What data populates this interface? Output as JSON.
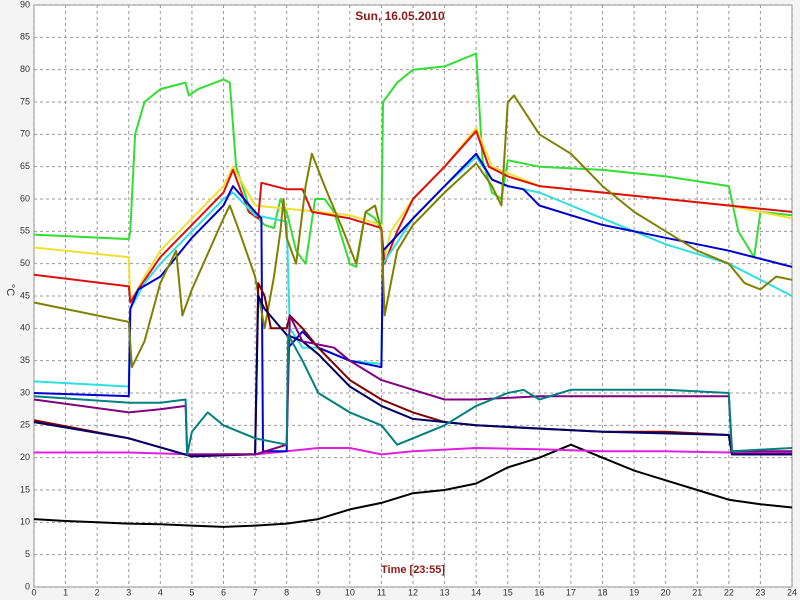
{
  "chart_data": {
    "type": "line",
    "title": "Sun, 16.05.2010",
    "x_label": "Time [23:55]",
    "y_label": "°C",
    "xlim": [
      0,
      24
    ],
    "ylim": [
      0,
      90
    ],
    "xticks": [
      0,
      1,
      2,
      3,
      4,
      5,
      6,
      7,
      8,
      9,
      10,
      11,
      12,
      13,
      14,
      15,
      16,
      17,
      18,
      19,
      20,
      21,
      22,
      23,
      24
    ],
    "yticks": [
      0,
      5,
      10,
      15,
      20,
      25,
      30,
      35,
      40,
      45,
      50,
      55,
      60,
      65,
      70,
      75,
      80,
      85,
      90
    ],
    "grid": true,
    "series": [
      {
        "color": "#000000",
        "x": [
          0,
          1,
          2,
          3,
          4,
          5,
          6,
          7,
          8,
          9,
          10,
          11,
          12,
          13,
          14,
          15,
          16,
          16.5,
          17,
          17.5,
          18,
          19,
          20,
          21,
          22,
          23,
          24
        ],
        "values": [
          10.5,
          10.2,
          10,
          9.8,
          9.7,
          9.5,
          9.3,
          9.5,
          9.8,
          10.5,
          12,
          13,
          14.5,
          15,
          16,
          18.5,
          20,
          21,
          22,
          21,
          20,
          18,
          16.5,
          15,
          13.5,
          12.8,
          12.3
        ]
      },
      {
        "color": "#e020e0",
        "x": [
          0,
          3,
          5,
          7,
          8,
          9,
          10,
          11,
          12,
          14,
          16,
          18,
          20,
          22,
          24
        ],
        "values": [
          20.8,
          20.8,
          20.5,
          20.5,
          21,
          21.5,
          21.5,
          20.5,
          21,
          21.5,
          21.3,
          21,
          21,
          20.8,
          20.8
        ]
      },
      {
        "color": "#33dd33",
        "x": [
          0,
          3,
          3.05,
          3.2,
          3.5,
          4,
          4.8,
          4.9,
          5.2,
          6,
          6.2,
          6.4,
          6.8,
          7,
          7.3,
          7.6,
          7.8,
          8,
          8.3,
          8.6,
          8.9,
          9.2,
          9.5,
          10,
          10.2,
          10.5,
          10.8,
          11,
          11.05,
          11.5,
          12,
          13,
          14,
          14.2,
          14.5,
          14.8,
          15,
          16,
          18,
          20,
          22,
          22.3,
          22.8,
          23,
          24
        ],
        "values": [
          54.5,
          53.8,
          55,
          70,
          75,
          77,
          78,
          76,
          77,
          78.5,
          78,
          65,
          59,
          57.5,
          56,
          55.5,
          60,
          58,
          52,
          50,
          60,
          60,
          58,
          50,
          49.5,
          58,
          57,
          55,
          75,
          78,
          80,
          80.5,
          82.5,
          66,
          61,
          60,
          66,
          65,
          64.5,
          63.5,
          62,
          55,
          51,
          58,
          57.5
        ]
      },
      {
        "color": "#f0e030",
        "x": [
          0,
          3,
          3.05,
          3.5,
          4,
          5,
          6,
          6.3,
          7,
          8,
          9,
          10,
          11,
          11.05,
          11.3,
          12,
          13,
          14,
          14.5,
          16,
          18,
          20,
          22,
          24
        ],
        "values": [
          52.5,
          51,
          44,
          48,
          52,
          57,
          62,
          65,
          59,
          58.5,
          58,
          57.5,
          56,
          50,
          55,
          60,
          65,
          71,
          65,
          62,
          61,
          60,
          59,
          57
        ]
      },
      {
        "color": "#dd1010",
        "x": [
          0,
          3,
          3.05,
          3.3,
          4,
          5,
          6,
          6.3,
          6.8,
          7.1,
          7.2,
          8,
          8.5,
          8.8,
          10,
          11,
          11.1,
          11.5,
          12,
          13,
          14,
          14.4,
          15,
          16,
          18,
          20,
          22,
          24
        ],
        "values": [
          48.3,
          46.5,
          44,
          46,
          51,
          56,
          61,
          64.5,
          58,
          57,
          62.5,
          61.5,
          61.5,
          58,
          57,
          55.5,
          50,
          55,
          60,
          65,
          70.5,
          65,
          63.5,
          62,
          61,
          60,
          59,
          58
        ]
      },
      {
        "color": "#30e0e0",
        "x": [
          0,
          3,
          3.05,
          3.5,
          4,
          5,
          6,
          6.3,
          7,
          7.5,
          8,
          8.1,
          8.5,
          9,
          10,
          11,
          11.05,
          12,
          13,
          14,
          14.5,
          15,
          16,
          18,
          20,
          22,
          24
        ],
        "values": [
          31.8,
          31,
          43,
          47,
          50,
          55,
          60,
          61,
          57.5,
          57,
          56.5,
          40,
          37,
          37,
          35,
          34.5,
          50,
          57,
          62,
          66.5,
          63,
          62,
          61,
          57,
          53,
          50,
          45
        ]
      },
      {
        "color": "#0000cc",
        "x": [
          0,
          3,
          3.05,
          3.3,
          4,
          5,
          6,
          6.3,
          7,
          7.2,
          7.25,
          8,
          8.05,
          8.5,
          9,
          10,
          11,
          11.05,
          12,
          13,
          14,
          14.5,
          15,
          15.5,
          16,
          18,
          20,
          22,
          24
        ],
        "values": [
          30,
          29.5,
          43,
          46,
          48,
          54,
          59,
          62,
          58,
          57,
          21,
          21,
          37,
          39.5,
          37,
          35,
          34,
          52,
          57,
          62,
          67,
          63,
          62,
          61.5,
          59,
          56,
          54,
          52,
          49.5
        ]
      },
      {
        "color": "#808000",
        "x": [
          0,
          3,
          3.1,
          3.5,
          4,
          4.5,
          4.7,
          5,
          6,
          6.2,
          6.5,
          7,
          7.3,
          7.6,
          7.8,
          7.9,
          8,
          8.3,
          8.6,
          8.8,
          9.2,
          9.8,
          10.2,
          10.5,
          10.8,
          11,
          11.1,
          11.5,
          12,
          13,
          14,
          14.5,
          14.8,
          15,
          15.2,
          16,
          17,
          18,
          19,
          20,
          21,
          22,
          22.5,
          23,
          23.5,
          24
        ],
        "values": [
          44,
          41,
          34,
          38,
          47,
          52,
          42,
          46,
          57,
          59,
          55,
          48,
          40,
          48,
          55,
          60,
          54,
          50,
          62,
          67,
          62,
          55,
          50,
          58,
          59,
          55,
          42,
          52,
          56,
          61,
          65.5,
          62,
          59,
          75,
          76,
          70,
          67,
          62,
          58,
          55,
          52,
          50,
          47,
          46,
          48,
          47.5
        ]
      },
      {
        "color": "#800000",
        "x": [
          0,
          3,
          5,
          6,
          7,
          7.1,
          7.3,
          7.5,
          8,
          8.1,
          8.5,
          9,
          10,
          11,
          12,
          13,
          14,
          16,
          18,
          20,
          22,
          22.1,
          24
        ],
        "values": [
          25.8,
          23,
          20.2,
          20.5,
          20.5,
          47,
          45,
          40,
          40,
          42,
          40,
          37,
          32,
          29,
          27,
          25.5,
          25,
          24.5,
          24,
          24,
          23.5,
          20.5,
          20.5
        ]
      },
      {
        "color": "#000066",
        "x": [
          0,
          3,
          5,
          7,
          7.1,
          7.3,
          8,
          8.5,
          9,
          10,
          11,
          12,
          14,
          18,
          22,
          22.1,
          24
        ],
        "values": [
          25.5,
          23,
          20.2,
          20.5,
          45,
          43,
          39,
          38,
          36,
          31,
          28,
          26,
          25,
          24,
          23.5,
          20.5,
          20.5
        ]
      },
      {
        "color": "#800080",
        "x": [
          0,
          3,
          4,
          4.8,
          4.85,
          7,
          8,
          8.1,
          8.5,
          9,
          9.5,
          10,
          11,
          12,
          13,
          14,
          16,
          18,
          20,
          22,
          22.1,
          24
        ],
        "values": [
          29,
          27,
          27.5,
          28,
          20.5,
          20.5,
          22,
          42,
          38,
          37.5,
          37,
          35,
          32,
          30.5,
          29,
          29,
          29.5,
          29.5,
          29.5,
          29.5,
          21,
          21
        ]
      },
      {
        "color": "#008080",
        "x": [
          0,
          3,
          4,
          4.8,
          4.85,
          5,
          5.5,
          6,
          7,
          8,
          8.05,
          8.5,
          9,
          10,
          11,
          11.5,
          12,
          13,
          14,
          15,
          15.5,
          16,
          17,
          20,
          22,
          22.1,
          24
        ],
        "values": [
          29.5,
          28.5,
          28.5,
          29,
          20.5,
          24,
          27,
          25,
          23,
          22,
          39,
          35,
          30,
          27,
          25,
          22,
          23,
          25,
          28,
          30,
          30.5,
          29,
          30.5,
          30.5,
          30,
          21,
          21.5
        ]
      }
    ]
  }
}
